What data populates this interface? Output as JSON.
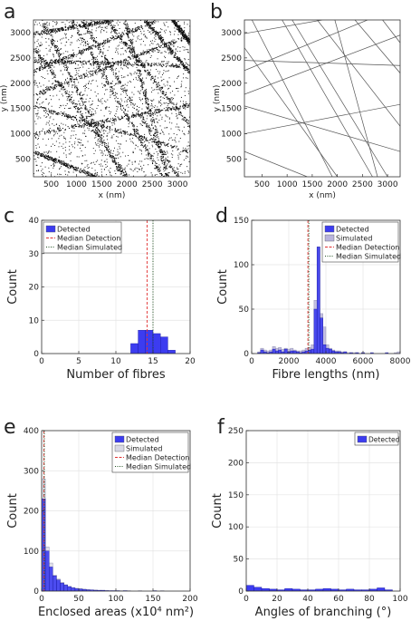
{
  "panels": [
    {
      "letter": "a",
      "chart_data": {
        "type": "scatter",
        "description_kind": "detected localisations forming fibres",
        "xlabel": "x (nm)",
        "ylabel": "y (nm)",
        "xlim": [
          150,
          3250
        ],
        "ylim": [
          150,
          3250
        ],
        "xticks": [
          500,
          1000,
          1500,
          2000,
          2500,
          3000
        ],
        "yticks": [
          500,
          1000,
          1500,
          2000,
          2500,
          3000
        ],
        "fibres": [
          [
            [
              150,
              2980
            ],
            [
              1700,
              3250
            ]
          ],
          [
            [
              150,
              2250
            ],
            [
              2600,
              3250
            ]
          ],
          [
            [
              150,
              1780
            ],
            [
              3250,
              2950
            ]
          ],
          [
            [
              150,
              1000
            ],
            [
              3250,
              1580
            ]
          ],
          [
            [
              300,
              3250
            ],
            [
              1900,
              150
            ]
          ],
          [
            [
              900,
              3250
            ],
            [
              2700,
              150
            ]
          ],
          [
            [
              1100,
              3250
            ],
            [
              3000,
              150
            ]
          ],
          [
            [
              150,
              2700
            ],
            [
              2000,
              150
            ]
          ],
          [
            [
              1600,
              3250
            ],
            [
              3250,
              1150
            ]
          ],
          [
            [
              150,
              1550
            ],
            [
              3250,
              650
            ]
          ],
          [
            [
              1950,
              3250
            ],
            [
              2800,
              150
            ]
          ],
          [
            [
              2350,
              3250
            ],
            [
              3250,
              2200
            ]
          ],
          [
            [
              150,
              2450
            ],
            [
              3250,
              2350
            ]
          ],
          [
            [
              150,
              650
            ],
            [
              1400,
              150
            ]
          ],
          [
            [
              2900,
              3250
            ],
            [
              3250,
              2800
            ]
          ]
        ]
      }
    },
    {
      "letter": "b",
      "chart_data": {
        "type": "line",
        "description_kind": "simulated fibres",
        "xlabel": "x (nm)",
        "ylabel": "y (nm)",
        "xlim": [
          150,
          3250
        ],
        "ylim": [
          150,
          3250
        ],
        "xticks": [
          500,
          1000,
          1500,
          2000,
          2500,
          3000
        ],
        "yticks": [
          500,
          1000,
          1500,
          2000,
          2500,
          3000
        ],
        "fibres": [
          [
            [
              150,
              2980
            ],
            [
              1700,
              3250
            ]
          ],
          [
            [
              150,
              2250
            ],
            [
              2600,
              3250
            ]
          ],
          [
            [
              150,
              1780
            ],
            [
              3250,
              2950
            ]
          ],
          [
            [
              150,
              1000
            ],
            [
              3250,
              1580
            ]
          ],
          [
            [
              300,
              3250
            ],
            [
              1900,
              150
            ]
          ],
          [
            [
              900,
              3250
            ],
            [
              2700,
              150
            ]
          ],
          [
            [
              1100,
              3250
            ],
            [
              3000,
              150
            ]
          ],
          [
            [
              150,
              2700
            ],
            [
              2000,
              150
            ]
          ],
          [
            [
              1600,
              3250
            ],
            [
              3250,
              1150
            ]
          ],
          [
            [
              150,
              1550
            ],
            [
              3250,
              650
            ]
          ],
          [
            [
              1950,
              3250
            ],
            [
              2800,
              150
            ]
          ],
          [
            [
              2350,
              3250
            ],
            [
              3250,
              2200
            ]
          ],
          [
            [
              150,
              2450
            ],
            [
              3250,
              2350
            ]
          ],
          [
            [
              150,
              650
            ],
            [
              1400,
              150
            ]
          ],
          [
            [
              2900,
              3250
            ],
            [
              3250,
              2800
            ]
          ]
        ]
      }
    },
    {
      "letter": "c",
      "chart_data": {
        "type": "bar",
        "xlabel": "Number of fibres",
        "ylabel": "Count",
        "xlim": [
          0,
          20
        ],
        "ylim": [
          0,
          40
        ],
        "xticks": [
          0,
          5,
          10,
          15,
          20
        ],
        "yticks": [
          0,
          10,
          20,
          30,
          40
        ],
        "grid": true,
        "legend": "top-left",
        "series": [
          {
            "name": "Detected",
            "color": "#3c3cf0",
            "bin_edges": [
              12,
              13,
              14,
              15,
              16,
              17,
              18
            ],
            "values": [
              3,
              7,
              7,
              6,
              5,
              1
            ]
          }
        ],
        "vlines": [
          {
            "name": "Median Detection",
            "x": 14.2,
            "color": "#e03030",
            "style": "dashed"
          },
          {
            "name": "Median Simulated",
            "x": 15.0,
            "color": "#205020",
            "style": "dotted"
          }
        ]
      }
    },
    {
      "letter": "d",
      "chart_data": {
        "type": "bar",
        "xlabel": "Fibre lengths (nm)",
        "ylabel": "Count",
        "xlim": [
          0,
          8000
        ],
        "ylim": [
          0,
          150
        ],
        "xticks": [
          0,
          2000,
          4000,
          6000,
          8000
        ],
        "yticks": [
          0,
          50,
          100,
          150
        ],
        "grid": true,
        "legend": "top-right",
        "bin_start": 0,
        "bin_width": 160,
        "series": [
          {
            "name": "Detected",
            "color": "#3c3cf0",
            "values": [
              0,
              0,
              1,
              4,
              2,
              1,
              2,
              5,
              3,
              4,
              2,
              5,
              2,
              3,
              3,
              2,
              1,
              2,
              3,
              4,
              5,
              50,
              120,
              40,
              10,
              6,
              5,
              3,
              2,
              2,
              1,
              2,
              0,
              1,
              0,
              1,
              0,
              1,
              0,
              0,
              1,
              0,
              0,
              0,
              0,
              1,
              0,
              0,
              0,
              0
            ]
          },
          {
            "name": "Simulated",
            "color": "#b9b4dc",
            "values": [
              0,
              0,
              2,
              6,
              4,
              3,
              4,
              8,
              6,
              7,
              5,
              6,
              5,
              6,
              4,
              3,
              3,
              4,
              6,
              7,
              10,
              60,
              120,
              45,
              30,
              10,
              6,
              4,
              3,
              3,
              2,
              2,
              1,
              1,
              1,
              1,
              0,
              1,
              0,
              0,
              0,
              0,
              0,
              0,
              0,
              0,
              0,
              0,
              1,
              2
            ]
          }
        ],
        "vlines": [
          {
            "name": "Median Detection",
            "x": 3030,
            "color": "#e03030",
            "style": "dashed"
          },
          {
            "name": "Median Simulated",
            "x": 3080,
            "color": "#205020",
            "style": "dotted"
          }
        ]
      }
    },
    {
      "letter": "e",
      "chart_data": {
        "type": "bar",
        "xlabel": "Enclosed areas (x10⁴ nm²)",
        "ylabel": "Count",
        "xlim": [
          0,
          200
        ],
        "ylim": [
          0,
          400
        ],
        "xticks": [
          0,
          50,
          100,
          150,
          200
        ],
        "yticks": [
          0,
          100,
          200,
          300,
          400
        ],
        "grid": true,
        "legend": "top-right",
        "bin_start": 0,
        "bin_width": 5,
        "series": [
          {
            "name": "Detected",
            "color": "#3c3cf0",
            "values": [
              230,
              100,
              60,
              38,
              28,
              20,
              15,
              11,
              8,
              6,
              5,
              4,
              3,
              3,
              2,
              2,
              2,
              1,
              1,
              1,
              1,
              0,
              1,
              0,
              0,
              0,
              0,
              0,
              0,
              0,
              1,
              0,
              0,
              0,
              0,
              0,
              0,
              0,
              0,
              0
            ]
          },
          {
            "name": "Simulated",
            "color": "#d8d8e4",
            "values": [
              280,
              110,
              70,
              40,
              30,
              22,
              16,
              12,
              9,
              7,
              6,
              5,
              4,
              3,
              3,
              2,
              2,
              2,
              1,
              1,
              1,
              1,
              1,
              1,
              0,
              0,
              1,
              0,
              0,
              0,
              0,
              0,
              1,
              0,
              0,
              0,
              0,
              0,
              0,
              0
            ]
          }
        ],
        "vlines": [
          {
            "name": "Median Detection",
            "x": 3.0,
            "color": "#e03030",
            "style": "dashed"
          },
          {
            "name": "Median Simulated",
            "x": 3.6,
            "color": "#205020",
            "style": "dotted"
          }
        ]
      }
    },
    {
      "letter": "f",
      "chart_data": {
        "type": "bar",
        "xlabel": "Angles of branching (°)",
        "ylabel": "Count",
        "xlim": [
          0,
          100
        ],
        "ylim": [
          0,
          250
        ],
        "xticks": [
          0,
          20,
          40,
          60,
          80,
          100
        ],
        "yticks": [
          0,
          50,
          100,
          150,
          200,
          250
        ],
        "grid": true,
        "legend": "top-right",
        "bin_start": 0,
        "bin_width": 5,
        "series": [
          {
            "name": "Detected",
            "color": "#3c3cf0",
            "values": [
              9,
              6,
              4,
              3,
              2,
              4,
              3,
              2,
              2,
              3,
              4,
              3,
              2,
              3,
              2,
              2,
              3,
              5,
              2,
              0
            ]
          }
        ]
      }
    }
  ]
}
